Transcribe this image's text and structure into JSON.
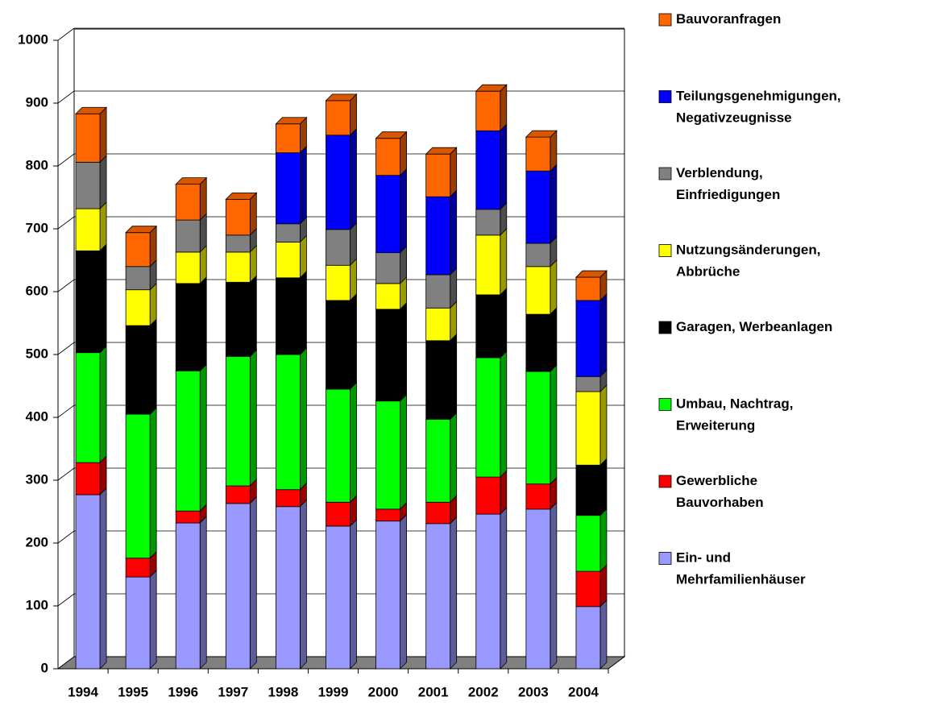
{
  "chart_data": {
    "type": "stacked-bar-3d",
    "categories": [
      "1994",
      "1995",
      "1996",
      "1997",
      "1998",
      "1999",
      "2000",
      "2001",
      "2002",
      "2003",
      "2004"
    ],
    "series": [
      {
        "name": "Ein- und Mehrfamilienhäuser",
        "color": "#9999ff",
        "values": [
          277,
          146,
          232,
          263,
          258,
          227,
          235,
          231,
          246,
          254,
          99
        ]
      },
      {
        "name": "Gewerbliche Bauvorhaben",
        "color": "#ff0000",
        "values": [
          51,
          30,
          19,
          28,
          27,
          38,
          19,
          34,
          59,
          40,
          56
        ]
      },
      {
        "name": "Umbau, Nachtrag, Erweiterung",
        "color": "#00ff00",
        "values": [
          175,
          229,
          223,
          206,
          215,
          180,
          172,
          132,
          190,
          179,
          89
        ]
      },
      {
        "name": "Garagen, Werbeanlagen",
        "color": "#000000",
        "values": [
          162,
          141,
          139,
          118,
          122,
          141,
          146,
          125,
          100,
          91,
          80
        ]
      },
      {
        "name": "Nutzungsänderungen, Abbrüche",
        "color": "#ffff00",
        "values": [
          67,
          57,
          50,
          48,
          57,
          56,
          41,
          52,
          95,
          76,
          117
        ]
      },
      {
        "name": "Verblendung, Einfriedigungen",
        "color": "#808080",
        "values": [
          74,
          37,
          51,
          27,
          29,
          57,
          49,
          53,
          41,
          37,
          24
        ]
      },
      {
        "name": "Teilungsgenehmigungen, Negativzeugnisse",
        "color": "#0000ff",
        "values": [
          0,
          0,
          0,
          0,
          113,
          150,
          123,
          124,
          125,
          115,
          121
        ]
      },
      {
        "name": "Bauvoranfragen",
        "color": "#ff6600",
        "values": [
          77,
          54,
          57,
          57,
          46,
          55,
          59,
          68,
          63,
          54,
          37
        ]
      }
    ],
    "ylim": [
      0,
      1000
    ],
    "yticks": [
      0,
      100,
      200,
      300,
      400,
      500,
      600,
      700,
      800,
      900,
      1000
    ],
    "grid": true
  }
}
